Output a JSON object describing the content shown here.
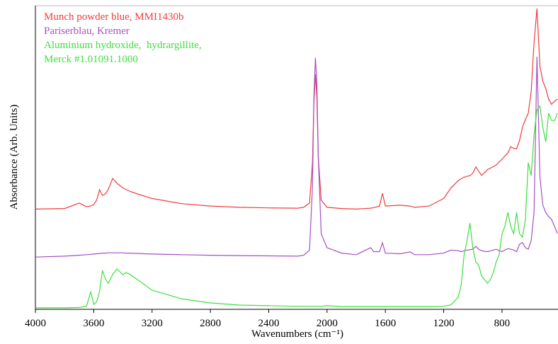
{
  "chart_data": {
    "type": "line",
    "x_label": "Wavenumbers (cm⁻¹)",
    "y_label": "Absorbance (Arb. Units)",
    "x": [
      4000,
      3800,
      3700,
      3650,
      3620,
      3600,
      3580,
      3560,
      3540,
      3520,
      3500,
      3470,
      3440,
      3400,
      3380,
      3350,
      3300,
      3200,
      3000,
      2800,
      2600,
      2400,
      2200,
      2160,
      2120,
      2100,
      2090,
      2080,
      2070,
      2060,
      2040,
      2000,
      1900,
      1800,
      1700,
      1680,
      1640,
      1620,
      1600,
      1500,
      1430,
      1400,
      1300,
      1200,
      1150,
      1100,
      1080,
      1060,
      1040,
      1020,
      1000,
      980,
      960,
      940,
      920,
      900,
      880,
      860,
      840,
      820,
      800,
      780,
      760,
      740,
      720,
      700,
      680,
      660,
      640,
      620,
      600,
      580,
      560,
      540,
      520,
      500,
      480,
      460,
      440,
      420
    ],
    "series": [
      {
        "name": "Munch powder blue, MMI1430b",
        "color": "#f03c3c",
        "values": [
          33,
          33.2,
          35,
          33.8,
          34,
          34.5,
          36,
          39.4,
          37.5,
          38,
          39.5,
          43.1,
          41.5,
          40,
          39.5,
          38.8,
          38,
          36.5,
          34.8,
          34,
          33.6,
          33.4,
          33.3,
          33.6,
          35,
          48,
          68,
          77.4,
          70,
          50,
          36,
          33.6,
          33.2,
          33,
          33.3,
          33.5,
          34,
          38.2,
          34,
          34.3,
          34,
          33.6,
          34,
          36.5,
          40,
          42.4,
          43,
          43.5,
          43.8,
          44,
          44.8,
          46.9,
          45.5,
          44.1,
          45,
          46,
          46.5,
          47,
          47.5,
          48.5,
          49.4,
          50.5,
          51.5,
          53.6,
          53,
          52.9,
          55.5,
          59.9,
          62.5,
          64.6,
          71.6,
          87.9,
          99.1,
          80,
          75.1,
          72.7,
          69.2,
          67.5,
          68.5,
          69.2
        ]
      },
      {
        "name": "Pariserblau, Kremer",
        "color": "#a64fc4",
        "values": [
          17.2,
          17.5,
          17.8,
          18,
          18.1,
          18.2,
          18.3,
          18.4,
          18.5,
          18.5,
          18.6,
          18.6,
          18.6,
          18.6,
          18.5,
          18.5,
          18.4,
          18.2,
          18,
          17.8,
          17.7,
          17.6,
          17.5,
          17.8,
          19.5,
          40,
          70,
          82.8,
          75,
          50,
          24.9,
          20.3,
          18.5,
          18,
          20.3,
          19,
          19,
          21.9,
          18.5,
          18.3,
          18.9,
          18,
          18,
          18.5,
          19.5,
          19.3,
          19,
          19.2,
          19.5,
          19.6,
          19.8,
          20.7,
          19.8,
          19.3,
          19.1,
          19,
          19.2,
          19.5,
          19.8,
          19.3,
          19,
          19.5,
          20,
          19.8,
          19.5,
          19,
          21.4,
          22,
          20.3,
          19.8,
          22.6,
          31.9,
          83.2,
          43.6,
          34.3,
          31.9,
          30.5,
          29.6,
          27.3,
          25
        ]
      },
      {
        "name": "Aluminium hydroxide,  hydrargillite, Merck #1.01091.1000",
        "color": "#3ee03e",
        "values": [
          0.5,
          0.5,
          0.6,
          1,
          5.8,
          1.6,
          2.5,
          6,
          12.8,
          10,
          8.6,
          11.5,
          13.3,
          11.4,
          12.1,
          11.5,
          9.8,
          6.3,
          3.5,
          2.1,
          1.4,
          1.2,
          1,
          1,
          1,
          1,
          1,
          1,
          1,
          1,
          1,
          1.2,
          0.9,
          0.9,
          0.9,
          0.9,
          0.9,
          0.9,
          0.9,
          0.9,
          0.9,
          0.9,
          0.9,
          1,
          1.5,
          4,
          8,
          18,
          22.6,
          28.4,
          20.3,
          15.6,
          14.5,
          11,
          9.8,
          8.6,
          9.8,
          12.1,
          15.6,
          17.9,
          24.9,
          27.3,
          31.9,
          27.3,
          24.9,
          31.9,
          24.9,
          23.8,
          29.6,
          48.3,
          44,
          57.6,
          65.7,
          66.9,
          59.9,
          55.2,
          64.6,
          62.2,
          62.2,
          64.6
        ]
      }
    ],
    "xlim": [
      4000,
      416
    ],
    "ylim": [
      0,
      100
    ],
    "xticks": [
      4000,
      3600,
      3200,
      2800,
      2400,
      2000,
      1600,
      1200,
      800
    ]
  }
}
